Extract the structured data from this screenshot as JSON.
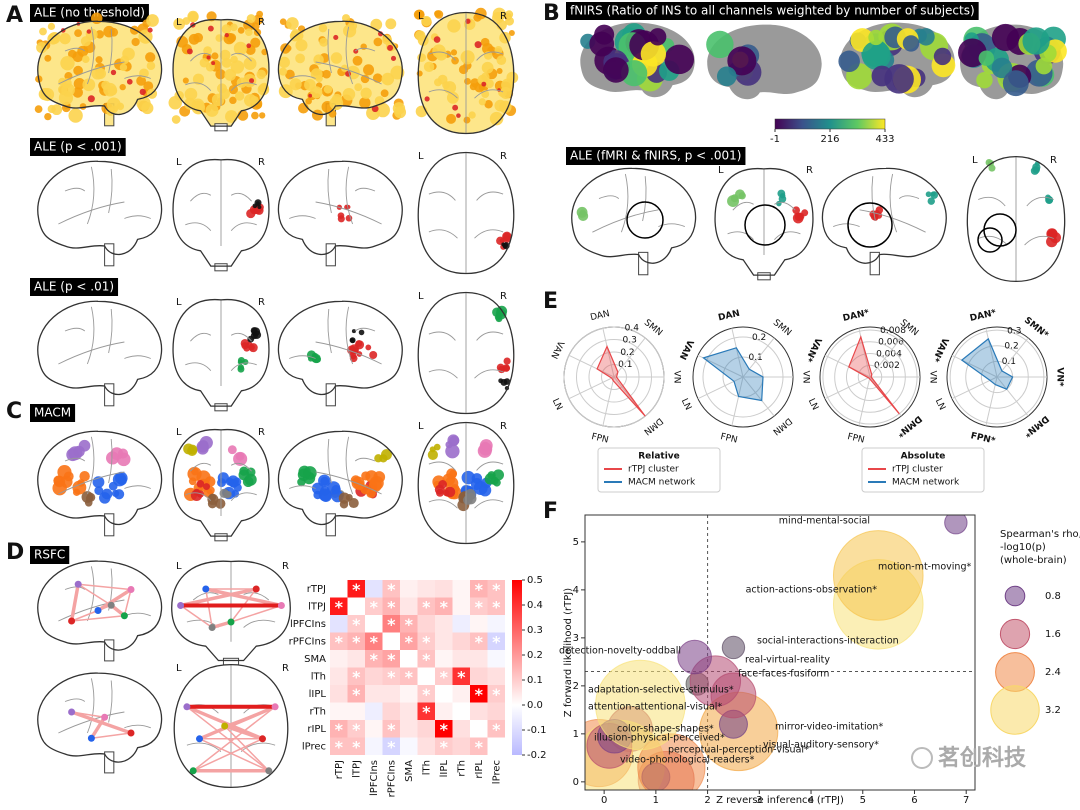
{
  "panels": {
    "A": {
      "letter": "A",
      "titles": [
        "ALE (no threshold)",
        "ALE (p < .001)",
        "ALE (p < .01)"
      ]
    },
    "B": {
      "letter": "B",
      "title": "fNIRS (Ratio of INS to all channels weighted by number of subjects)",
      "subtitle": "ALE (fMRI & fNIRS, p < .001)"
    },
    "C": {
      "letter": "C",
      "title": "MACM"
    },
    "D": {
      "letter": "D",
      "title": "RSFC"
    },
    "E": {
      "letter": "E"
    },
    "F": {
      "letter": "F"
    }
  },
  "hemisphere_labels": {
    "left": "L",
    "right": "R"
  },
  "watermark": "茗创科技",
  "chart_data": [
    {
      "type": "colorbar",
      "lim": [
        -1,
        433
      ],
      "ticks": [
        -1,
        216,
        433
      ],
      "colors": [
        "#440154",
        "#3b528b",
        "#21918c",
        "#5ec962",
        "#fde725"
      ]
    },
    {
      "type": "heatmap",
      "categories": [
        "rTPJ",
        "lTPJ",
        "lPFCIns",
        "rPFCIns",
        "SMA",
        "lTh",
        "lIPL",
        "rTh",
        "rIPL",
        "lPrec"
      ],
      "values": [
        [
          0,
          0.45,
          -0.08,
          0.12,
          0.03,
          0.05,
          0.06,
          0.02,
          0.15,
          0.12
        ],
        [
          0.45,
          0,
          0.1,
          0.15,
          0.05,
          0.12,
          0.15,
          0.02,
          0.1,
          0.12
        ],
        [
          -0.08,
          0.1,
          0,
          0.25,
          0.15,
          0.08,
          0.05,
          -0.05,
          0.02,
          -0.03
        ],
        [
          0.12,
          0.15,
          0.25,
          0,
          0.18,
          0.1,
          0.05,
          0.08,
          0.12,
          -0.12
        ],
        [
          0.03,
          0.05,
          0.15,
          0.18,
          0,
          0.12,
          0.02,
          0.05,
          0.05,
          -0.02
        ],
        [
          0.05,
          0.12,
          0.08,
          0.1,
          0.12,
          0,
          0.1,
          0.4,
          0.08,
          0.06
        ],
        [
          0.06,
          0.15,
          0.05,
          0.05,
          0.02,
          0.1,
          0,
          0.03,
          0.5,
          0.1
        ],
        [
          0.02,
          0.02,
          -0.05,
          0.08,
          0.05,
          0.4,
          0.03,
          0,
          0.06,
          0.08
        ],
        [
          0.15,
          0.1,
          0.02,
          0.12,
          0.05,
          0.08,
          0.5,
          0.06,
          0,
          0.12
        ],
        [
          0.12,
          0.12,
          -0.03,
          -0.12,
          -0.02,
          0.06,
          0.1,
          0.08,
          0.12,
          0
        ]
      ],
      "stars": [
        [
          false,
          true,
          false,
          true,
          false,
          false,
          false,
          false,
          true,
          true
        ],
        [
          true,
          false,
          true,
          true,
          false,
          true,
          true,
          false,
          true,
          true
        ],
        [
          false,
          true,
          false,
          true,
          true,
          false,
          false,
          false,
          false,
          false
        ],
        [
          true,
          true,
          true,
          false,
          true,
          true,
          false,
          false,
          true,
          true
        ],
        [
          false,
          false,
          true,
          true,
          false,
          true,
          false,
          false,
          false,
          false
        ],
        [
          false,
          true,
          false,
          true,
          true,
          false,
          true,
          true,
          false,
          false
        ],
        [
          false,
          true,
          false,
          false,
          false,
          true,
          false,
          false,
          true,
          true
        ],
        [
          false,
          false,
          false,
          false,
          false,
          true,
          false,
          false,
          false,
          false
        ],
        [
          true,
          true,
          false,
          true,
          false,
          false,
          true,
          false,
          false,
          true
        ],
        [
          true,
          true,
          false,
          true,
          false,
          false,
          true,
          false,
          true,
          false
        ]
      ],
      "star_label": "*",
      "clim": [
        -0.2,
        0.5
      ],
      "cticks": [
        -0.2,
        -0.1,
        {
          "value": 0,
          "label": "0.0"
        },
        0.1,
        0.2,
        0.3,
        0.4,
        0.5
      ],
      "colors": [
        "#5050ff",
        "#ffffff",
        "#ff0000"
      ]
    },
    {
      "type": "radar",
      "legend_title": "Relative",
      "axes": [
        "DAN",
        "SMN",
        "VN",
        "DMN",
        "FPN",
        "LN",
        "VAN"
      ],
      "bold": [
        false,
        false,
        false,
        false,
        false,
        false,
        false
      ],
      "rlim": [
        0,
        0.4
      ],
      "rticks": [
        0.1,
        0.2,
        0.3,
        0.4
      ],
      "series": [
        {
          "name": "rTPJ cluster",
          "color": "#e8474a",
          "values": [
            0.25,
            0.05,
            0.02,
            0.4,
            0.03,
            0.02,
            0.15
          ]
        }
      ]
    },
    {
      "type": "radar",
      "axes": [
        "DAN",
        "SMN",
        "VN",
        "DMN",
        "FPN",
        "LN",
        "VAN"
      ],
      "bold": [
        true,
        false,
        false,
        false,
        false,
        false,
        true
      ],
      "rlim": [
        0,
        0.25
      ],
      "rticks": [
        0.1,
        0.2
      ],
      "series": [
        {
          "name": "MACM network",
          "color": "#2a7ab8",
          "values": [
            0.15,
            0.05,
            0.1,
            0.15,
            0.1,
            0.05,
            0.22
          ]
        }
      ]
    },
    {
      "type": "radar",
      "legend_title": "Absolute",
      "axes": [
        "DAN*",
        "SMN",
        "VN",
        "DMN*",
        "FPN",
        "LN",
        "VAN*"
      ],
      "bold": [
        true,
        false,
        false,
        true,
        false,
        false,
        true
      ],
      "rlim": [
        0,
        0.0085
      ],
      "rticks": [
        0.002,
        0.004,
        0.006,
        0.008
      ],
      "series": [
        {
          "name": "rTPJ cluster",
          "color": "#e8474a",
          "values": [
            0.007,
            0.0005,
            0.0002,
            0.008,
            0.0003,
            0.0003,
            0.004
          ]
        }
      ]
    },
    {
      "type": "radar",
      "axes": [
        "DAN*",
        "SMN*",
        "VN*",
        "DMN*",
        "FPN*",
        "LN",
        "VAN*"
      ],
      "bold": [
        true,
        true,
        true,
        true,
        true,
        false,
        true
      ],
      "rlim": [
        0,
        0.32
      ],
      "rticks": [
        0.1,
        0.2,
        0.3
      ],
      "series": [
        {
          "name": "MACM network",
          "color": "#2a7ab8",
          "values": [
            0.25,
            0.05,
            0.1,
            0.1,
            0.05,
            0.05,
            0.25
          ]
        }
      ]
    },
    {
      "type": "bubble",
      "xlabel": "Z reverse inference (rTPJ)",
      "ylabel": "Z forward likelihood (rTPJ)",
      "xlim": [
        -0.37,
        7.17
      ],
      "ylim": [
        -0.17,
        5.56
      ],
      "xticks": [
        0,
        1,
        2,
        3,
        4,
        5,
        6,
        7
      ],
      "yticks": [
        0,
        1,
        2,
        3,
        4,
        5
      ],
      "threshold_lines": {
        "x": 2,
        "y": 2.3
      },
      "points": [
        {
          "label": "mind-mental-social",
          "x": 6.8,
          "y": 5.4,
          "size": 0.8,
          "color": "#6f3f86"
        },
        {
          "label": "motion-mt-moving*",
          "x": 5.3,
          "y": 4.3,
          "size": 3.2,
          "color": "#f6c54e"
        },
        {
          "label": "action-actions-observation*",
          "x": 5.3,
          "y": 3.7,
          "size": 3.2,
          "color": "#f8e27a"
        },
        {
          "label": "social-interactions-interaction",
          "x": 2.5,
          "y": 2.8,
          "size": 0.8,
          "color": "#5b4a63"
        },
        {
          "label": "detection-novelty-oddball",
          "x": 1.75,
          "y": 2.6,
          "size": 1.2,
          "color": "#7a3f86"
        },
        {
          "label": "real-virtual-reality",
          "x": 2.15,
          "y": 2.1,
          "size": 1.8,
          "color": "#b44a72"
        },
        {
          "label": "face-faces-fusiform",
          "x": 2.5,
          "y": 1.8,
          "size": 1.6,
          "color": "#b84d6e"
        },
        {
          "label": "adaptation-selective-stimulus*",
          "x": 1.8,
          "y": 2.04,
          "size": 0.8,
          "color": "#555555"
        },
        {
          "label": "attention-attentional-visual*",
          "x": 0.7,
          "y": 1.6,
          "size": 3.2,
          "color": "#f8e27a"
        },
        {
          "label": "mirror-video-imitation*",
          "x": 2.5,
          "y": 1.2,
          "size": 1.0,
          "color": "#6f3f86"
        },
        {
          "label": "visual-auditory-sensory*",
          "x": 2.6,
          "y": 1.05,
          "size": 2.8,
          "color": "#f3a845"
        },
        {
          "label": "color-shape-shapes*",
          "x": 0.2,
          "y": 0.95,
          "size": 1.2,
          "color": "#7a3f86"
        },
        {
          "label": "illusion-physical-perceived*",
          "x": 0.1,
          "y": 0.75,
          "size": 1.6,
          "color": "#b84d6e"
        },
        {
          "label": "perceptual-perception-visual*",
          "x": 1.3,
          "y": 0.3,
          "size": 2.4,
          "color": "#f08a4b"
        },
        {
          "label": "video-phonological-readers*",
          "x": 1.0,
          "y": 0.1,
          "size": 1.0,
          "color": "#6f3f86"
        },
        {
          "label": null,
          "x": 0.3,
          "y": 0.35,
          "size": 3.2,
          "color": "#f8e27a"
        },
        {
          "label": null,
          "x": -0.1,
          "y": 0.6,
          "size": 2.4,
          "color": "#f08a4b"
        },
        {
          "label": null,
          "x": 0.5,
          "y": 1.1,
          "size": 1.6,
          "color": "#b84d6e"
        },
        {
          "label": null,
          "x": 1.2,
          "y": 0.05,
          "size": 2.0,
          "color": "#d8645c"
        }
      ],
      "size_legend": {
        "title": [
          "Spearman's rho,",
          "-log10(p)",
          "(whole-brain)"
        ],
        "values": [
          0.8,
          1.6,
          2.4,
          3.2
        ],
        "colors": [
          "#6f3f86",
          "#c2576e",
          "#f08a4b",
          "#f8d86a"
        ]
      }
    }
  ]
}
